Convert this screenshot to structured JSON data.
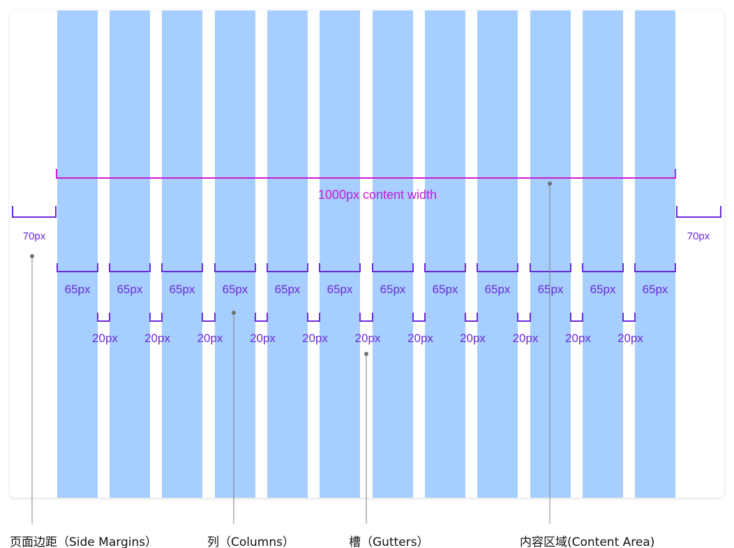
{
  "diagram": {
    "content_width_label": "1000px content width",
    "margin_left_label": "70px",
    "margin_right_label": "70px",
    "column_labels": [
      "65px",
      "65px",
      "65px",
      "65px",
      "65px",
      "65px",
      "65px",
      "65px",
      "65px",
      "65px",
      "65px",
      "65px"
    ],
    "gutter_labels": [
      "20px",
      "20px",
      "20px",
      "20px",
      "20px",
      "20px",
      "20px",
      "20px",
      "20px",
      "20px",
      "20px"
    ],
    "captions": {
      "side_margins": "页面边距（Side Margins）",
      "columns": "列（Columns）",
      "gutters": "槽（Gutters）",
      "content_area": "内容区域(Content Area)"
    },
    "colors": {
      "column_fill": "#a6cefe",
      "measure_color": "#6a2bd6",
      "content_color": "#c81ad9",
      "leader_color": "#7f7f7f"
    }
  }
}
